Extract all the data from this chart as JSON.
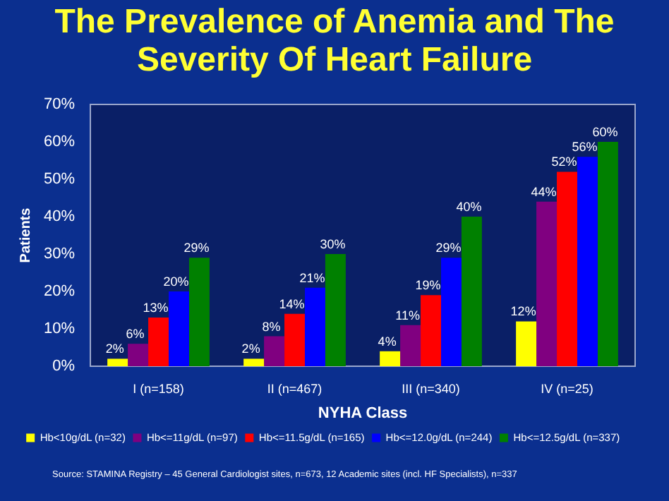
{
  "chart_data": {
    "type": "bar",
    "title": "The Prevalence of Anemia and The Severity Of Heart Failure",
    "xlabel": "NYHA Class",
    "ylabel": "Patients",
    "categories": [
      "I (n=158)",
      "II (n=467)",
      "III (n=340)",
      "IV (n=25)"
    ],
    "series": [
      {
        "name": "Hb<10g/dL (n=32)",
        "color": "#ffff00",
        "values": [
          2,
          2,
          4,
          12
        ],
        "value_labels": [
          "2%",
          "2%",
          "4%",
          "12%"
        ]
      },
      {
        "name": "Hb<=11g/dL (n=97)",
        "color": "#800080",
        "values": [
          6,
          8,
          11,
          44
        ],
        "value_labels": [
          "6%",
          "8%",
          "11%",
          "44%"
        ]
      },
      {
        "name": "Hb<=11.5g/dL (n=165)",
        "color": "#ff0000",
        "values": [
          13,
          14,
          19,
          52
        ],
        "value_labels": [
          "13%",
          "14%",
          "19%",
          "52%"
        ]
      },
      {
        "name": "Hb<=12.0g/dL (n=244)",
        "color": "#0000ff",
        "values": [
          20,
          21,
          29,
          56
        ],
        "value_labels": [
          "20%",
          "21%",
          "29%",
          "56%"
        ]
      },
      {
        "name": "Hb<=12.5g/dL (n=337)",
        "color": "#008000",
        "values": [
          29,
          30,
          40,
          60
        ],
        "value_labels": [
          "29%",
          "30%",
          "40%",
          "60%"
        ]
      }
    ],
    "ylim": [
      0,
      70
    ],
    "yticks": [
      {
        "value": 0,
        "label": "0%"
      },
      {
        "value": 10,
        "label": "10%"
      },
      {
        "value": 20,
        "label": "20%"
      },
      {
        "value": 30,
        "label": "30%"
      },
      {
        "value": 40,
        "label": "40%"
      },
      {
        "value": 50,
        "label": "50%"
      },
      {
        "value": 60,
        "label": "60%"
      },
      {
        "value": 70,
        "label": "70%"
      }
    ],
    "grid": false,
    "legend": "bottom",
    "annotations": [
      "Source: STAMINA Registry – 45 General Cardiologist sites, n=673, 12 Academic sites (incl. HF Specialists), n=337"
    ]
  }
}
